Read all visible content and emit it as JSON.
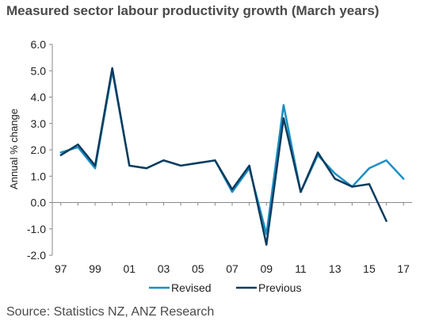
{
  "chart_data": {
    "type": "line",
    "title": "Measured sector labour productivity growth (March years)",
    "ylabel": "Annual % change",
    "xlabel": "",
    "ylim": [
      -2.0,
      6.0
    ],
    "yticks": [
      "6.0",
      "5.0",
      "4.0",
      "3.0",
      "2.0",
      "1.0",
      "0.0",
      "-1.0",
      "-2.0"
    ],
    "ytick_values": [
      6,
      5,
      4,
      3,
      2,
      1,
      0,
      -1,
      -2
    ],
    "xticks": [
      "97",
      "99",
      "01",
      "03",
      "05",
      "07",
      "09",
      "11",
      "13",
      "15",
      "17"
    ],
    "xtick_values": [
      1997,
      1999,
      2001,
      2003,
      2005,
      2007,
      2009,
      2011,
      2013,
      2015,
      2017
    ],
    "x": [
      1997,
      1998,
      1999,
      2000,
      2001,
      2002,
      2003,
      2004,
      2005,
      2006,
      2007,
      2008,
      2009,
      2010,
      2011,
      2012,
      2013,
      2014,
      2015,
      2016,
      2017
    ],
    "series": [
      {
        "name": "Revised",
        "color": "#1a8fc4",
        "values": [
          1.9,
          2.1,
          1.3,
          5.0,
          1.4,
          1.3,
          1.6,
          1.4,
          1.5,
          1.6,
          0.4,
          1.3,
          -1.2,
          3.7,
          0.4,
          1.8,
          1.1,
          0.6,
          1.3,
          1.6,
          0.9
        ]
      },
      {
        "name": "Previous",
        "color": "#0d3b5e",
        "values": [
          1.8,
          2.2,
          1.4,
          5.1,
          1.4,
          1.3,
          1.6,
          1.4,
          1.5,
          1.6,
          0.5,
          1.4,
          -1.6,
          3.2,
          0.4,
          1.9,
          0.9,
          0.6,
          0.7,
          -0.7,
          null
        ]
      }
    ],
    "legend_position": "bottom",
    "grid": false
  },
  "footer": {
    "source": "Source: Statistics NZ, ANZ Research"
  }
}
